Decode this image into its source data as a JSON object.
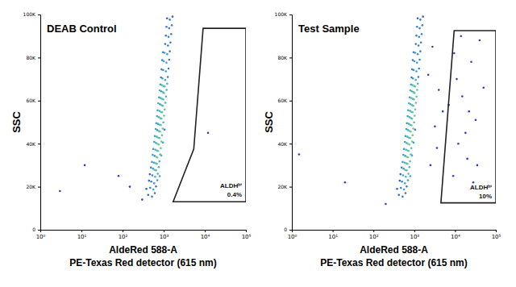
{
  "chart_data": [
    {
      "type": "scatter",
      "title": "DEAB Control",
      "xlabel": [
        "AldeRed 588-A",
        "PE-Texas Red detector (615 nm)"
      ],
      "ylabel": "SSC",
      "log": "x",
      "color": "#2b3fbf",
      "xlim": [
        1,
        100000
      ],
      "ylim": [
        0,
        100000
      ],
      "xticks": [
        {
          "value": 1,
          "label": "10⁰"
        },
        {
          "value": 10,
          "label": "10¹"
        },
        {
          "value": 100,
          "label": "10²"
        },
        {
          "value": 1000,
          "label": "10³"
        },
        {
          "value": 10000,
          "label": "10⁴"
        },
        {
          "value": 100000,
          "label": "10⁵"
        }
      ],
      "yticks": [
        0,
        {
          "value": 20000,
          "label": "20K"
        },
        {
          "value": 40000,
          "label": "40K"
        },
        {
          "value": 60000,
          "label": "60K"
        },
        {
          "value": 80000,
          "label": "80K"
        },
        {
          "value": 100000,
          "label": "100K"
        }
      ],
      "x": [
        420,
        520,
        610,
        470,
        560,
        650,
        380,
        500,
        590,
        700,
        440,
        530,
        620,
        720,
        460,
        800,
        550,
        650,
        760,
        490,
        600,
        580,
        680,
        790,
        520,
        640,
        600,
        700,
        820,
        540,
        660,
        880,
        630,
        730,
        850,
        560,
        690,
        650,
        760,
        880,
        590,
        710,
        960,
        680,
        790,
        910,
        610,
        740,
        700,
        820,
        950,
        640,
        770,
        1050,
        730,
        850,
        990,
        660,
        800,
        760,
        880,
        1020,
        690,
        830,
        790,
        910,
        1060,
        710,
        860,
        810,
        950,
        1100,
        740,
        890,
        840,
        980,
        1140,
        770,
        920,
        870,
        1010,
        1180,
        800,
        960,
        900,
        1050,
        1220,
        830,
        990,
        930,
        1090,
        1260,
        860,
        970,
        1130,
        1310,
        890,
        1010,
        1170,
        1360,
        920,
        1050,
        1220,
        1410,
        960,
        1090,
        1270,
        1460,
        1130,
        1310,
        1520,
        1170,
        1360,
        1580,
        1210,
        1410,
        1640,
        12,
        80,
        150,
        300,
        3,
        12000
      ],
      "values": [
        16200,
        15400,
        17000,
        19500,
        18700,
        20100,
        19000,
        22400,
        21600,
        23000,
        22800,
        25300,
        24600,
        26000,
        25800,
        24900,
        28400,
        27600,
        29100,
        28900,
        27800,
        31200,
        30600,
        31800,
        31500,
        30900,
        34300,
        33600,
        35000,
        34800,
        33900,
        34500,
        37200,
        36600,
        37900,
        37500,
        36800,
        40300,
        39600,
        41000,
        40800,
        39900,
        40500,
        43200,
        42600,
        43900,
        43500,
        42800,
        46300,
        45600,
        47000,
        46800,
        45900,
        46500,
        49200,
        48600,
        49900,
        49500,
        48800,
        52300,
        51600,
        53000,
        52800,
        51900,
        55200,
        54600,
        55900,
        55500,
        54800,
        58300,
        57600,
        59000,
        58800,
        57900,
        61200,
        60600,
        61900,
        61500,
        60800,
        64300,
        63600,
        65000,
        64800,
        63900,
        67200,
        66600,
        67900,
        67500,
        66800,
        70300,
        69600,
        71000,
        70800,
        74200,
        73600,
        74900,
        74500,
        78300,
        77600,
        79000,
        78800,
        82200,
        81600,
        82900,
        82500,
        86300,
        85600,
        87000,
        90200,
        89600,
        90900,
        94300,
        93600,
        95000,
        98200,
        97600,
        99000,
        30000,
        25000,
        20000,
        14000,
        18000,
        45000
      ],
      "gate": {
        "x": [
          9100,
          100000,
          100000,
          1700,
          5400
        ],
        "y": [
          93600,
          93600,
          13000,
          13000,
          37500
        ],
        "label": "ALDHʰⁱ",
        "percent": "0.4%"
      }
    },
    {
      "type": "scatter",
      "title": "Test Sample",
      "xlabel": [
        "AldeRed 588-A",
        "PE-Texas Red detector (615 nm)"
      ],
      "ylabel": "SSC",
      "log": "x",
      "color": "#2b3fbf",
      "xlim": [
        1,
        100000
      ],
      "ylim": [
        0,
        100000
      ],
      "xticks": [
        {
          "value": 1,
          "label": "10⁰"
        },
        {
          "value": 10,
          "label": "10¹"
        },
        {
          "value": 100,
          "label": "10²"
        },
        {
          "value": 1000,
          "label": "10³"
        },
        {
          "value": 10000,
          "label": "10⁴"
        },
        {
          "value": 100000,
          "label": "10⁵"
        }
      ],
      "yticks": [
        0,
        {
          "value": 20000,
          "label": "20K"
        },
        {
          "value": 40000,
          "label": "40K"
        },
        {
          "value": 60000,
          "label": "60K"
        },
        {
          "value": 80000,
          "label": "80K"
        },
        {
          "value": 100000,
          "label": "100K"
        }
      ],
      "x": [
        420,
        520,
        610,
        470,
        560,
        650,
        380,
        500,
        590,
        700,
        440,
        530,
        620,
        720,
        460,
        800,
        550,
        650,
        760,
        490,
        600,
        580,
        680,
        790,
        520,
        640,
        600,
        700,
        820,
        540,
        660,
        880,
        630,
        730,
        850,
        560,
        690,
        650,
        760,
        880,
        590,
        710,
        960,
        680,
        790,
        910,
        610,
        740,
        700,
        820,
        950,
        640,
        770,
        1050,
        730,
        850,
        990,
        660,
        800,
        760,
        880,
        1020,
        690,
        830,
        790,
        910,
        1060,
        710,
        860,
        810,
        950,
        1100,
        740,
        890,
        840,
        980,
        1140,
        770,
        920,
        870,
        1010,
        1180,
        800,
        960,
        900,
        1050,
        1220,
        830,
        990,
        930,
        1090,
        1260,
        860,
        970,
        1130,
        1310,
        890,
        1010,
        1170,
        1360,
        920,
        1050,
        1220,
        1410,
        960,
        1090,
        1270,
        1460,
        1130,
        1310,
        1520,
        1170,
        1360,
        1580,
        1210,
        1410,
        1640,
        9000,
        12000,
        15000,
        20000,
        25000,
        32000,
        40000,
        11000,
        18000,
        28000,
        7000,
        50000,
        14000,
        22000,
        35000,
        9500,
        2500,
        3200,
        4000,
        2200,
        3600,
        5000,
        2800,
        1.5,
        20,
        200
      ],
      "values": [
        16200,
        15400,
        17000,
        19500,
        18700,
        20100,
        19000,
        22400,
        21600,
        23000,
        22800,
        25300,
        24600,
        26000,
        25800,
        24900,
        28400,
        27600,
        29100,
        28900,
        27800,
        31200,
        30600,
        31800,
        31500,
        30900,
        34300,
        33600,
        35000,
        34800,
        33900,
        34500,
        37200,
        36600,
        37900,
        37500,
        36800,
        40300,
        39600,
        41000,
        40800,
        39900,
        40500,
        43200,
        42600,
        43900,
        43500,
        42800,
        46300,
        45600,
        47000,
        46800,
        45900,
        46500,
        49200,
        48600,
        49900,
        49500,
        48800,
        52300,
        51600,
        53000,
        52800,
        51900,
        55200,
        54600,
        55900,
        55500,
        54800,
        58300,
        57600,
        59000,
        58800,
        57900,
        61200,
        60600,
        61900,
        61500,
        60800,
        64300,
        63600,
        65000,
        64800,
        63900,
        67200,
        66600,
        67900,
        67500,
        66800,
        70300,
        69600,
        71000,
        70800,
        74200,
        73600,
        74900,
        74500,
        78300,
        77600,
        79000,
        78800,
        82200,
        81600,
        82900,
        82500,
        86300,
        85600,
        87000,
        90200,
        89600,
        90900,
        94300,
        93600,
        95000,
        98200,
        97600,
        99000,
        25000,
        40000,
        62000,
        33000,
        78000,
        51000,
        88000,
        70000,
        45000,
        22000,
        58000,
        66000,
        90000,
        55000,
        30000,
        82000,
        30000,
        48000,
        65000,
        72000,
        38000,
        55000,
        85000,
        35000,
        22000,
        12000
      ],
      "gate": {
        "x": [
          9500,
          100000,
          100000,
          4500
        ],
        "y": [
          92500,
          92500,
          12500,
          12500
        ],
        "label": "ALDHʰⁱ",
        "percent": "10%"
      }
    }
  ]
}
